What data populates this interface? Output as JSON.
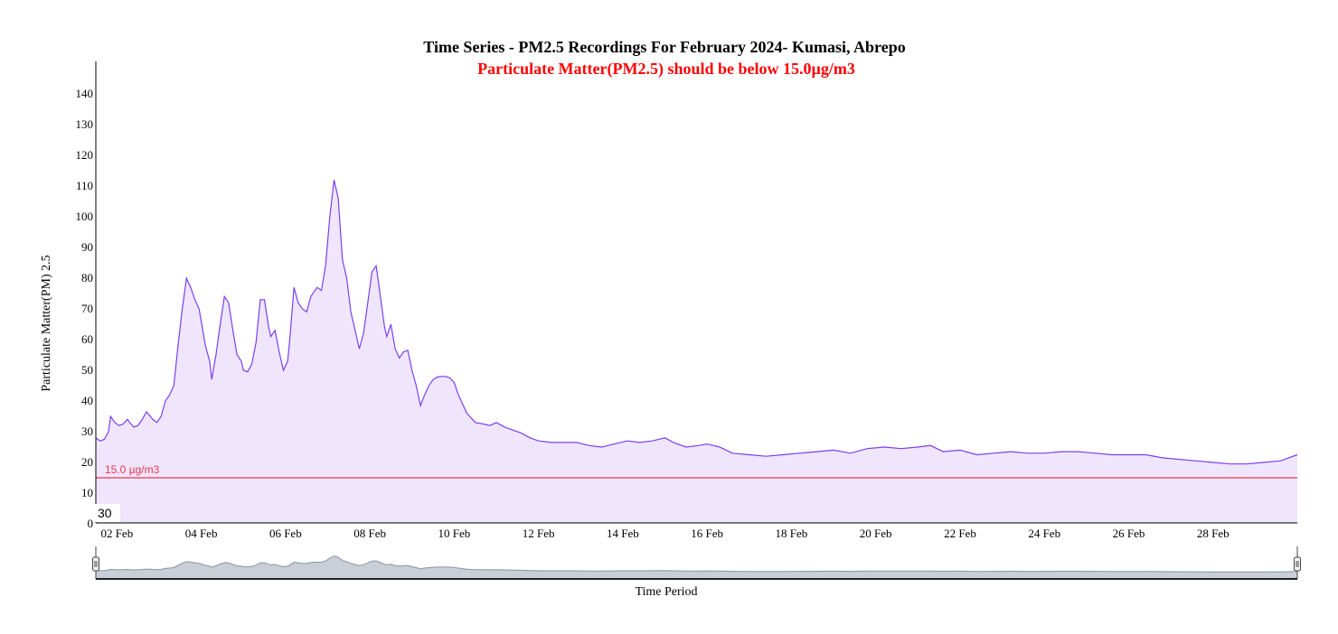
{
  "chart_data": {
    "type": "area",
    "title": "Time Series - PM2.5 Recordings For February 2024- Kumasi, Abrepo",
    "subtitle": "Particulate Matter(PM2.5) should be below 15.0µg/m3",
    "xlabel": "Time Period",
    "ylabel": "Particulate Matter(PM) 2.5",
    "ylim": [
      0,
      150
    ],
    "yticks": [
      0,
      10,
      20,
      30,
      40,
      50,
      60,
      70,
      80,
      90,
      100,
      110,
      120,
      130,
      140
    ],
    "xlim": [
      1.5,
      30.0
    ],
    "xticks": [
      {
        "day": 2,
        "label": "02 Feb"
      },
      {
        "day": 4,
        "label": "04 Feb"
      },
      {
        "day": 6,
        "label": "06 Feb"
      },
      {
        "day": 8,
        "label": "08 Feb"
      },
      {
        "day": 10,
        "label": "10 Feb"
      },
      {
        "day": 12,
        "label": "12 Feb"
      },
      {
        "day": 14,
        "label": "14 Feb"
      },
      {
        "day": 16,
        "label": "16 Feb"
      },
      {
        "day": 18,
        "label": "18 Feb"
      },
      {
        "day": 20,
        "label": "20 Feb"
      },
      {
        "day": 22,
        "label": "22 Feb"
      },
      {
        "day": 24,
        "label": "24 Feb"
      },
      {
        "day": 26,
        "label": "26 Feb"
      },
      {
        "day": 28,
        "label": "28 Feb"
      }
    ],
    "threshold": {
      "value": 15.0,
      "label": "15.0 µg/m3",
      "color": "#e8384f"
    },
    "badge_text": "30",
    "grid": false,
    "colors": {
      "line": "#7b3ff2",
      "fill": "#efe6fd",
      "navigator": "#8a95a5"
    },
    "series": [
      {
        "x": [
          1.5,
          1.6,
          1.7,
          1.8,
          1.85,
          1.95,
          2.05,
          2.15,
          2.25,
          2.3,
          2.4,
          2.5,
          2.6,
          2.7,
          2.85,
          2.95,
          3.05,
          3.15,
          3.25,
          3.35,
          3.45,
          3.55,
          3.65,
          3.75,
          3.85,
          3.95,
          4.0,
          4.1,
          4.2,
          4.25,
          4.35,
          4.45,
          4.55,
          4.65,
          4.75,
          4.85,
          4.95,
          5.0,
          5.1,
          5.2,
          5.3,
          5.4,
          5.5,
          5.6,
          5.65,
          5.75,
          5.85,
          5.95,
          6.05,
          6.1,
          6.2,
          6.3,
          6.4,
          6.5,
          6.6,
          6.75,
          6.85,
          6.95,
          7.05,
          7.15,
          7.25,
          7.35,
          7.45,
          7.55,
          7.65,
          7.75,
          7.85,
          7.95,
          8.05,
          8.15,
          8.25,
          8.35,
          8.4,
          8.5,
          8.6,
          8.7,
          8.8,
          8.9,
          9.0,
          9.1,
          9.2,
          9.3,
          9.4,
          9.5,
          9.6,
          9.7,
          9.8,
          9.9,
          10.0,
          10.1,
          10.2,
          10.3,
          10.5,
          10.7,
          10.85,
          11.0,
          11.2,
          11.4,
          11.6,
          11.8,
          12.0,
          12.3,
          12.6,
          12.9,
          13.2,
          13.5,
          13.8,
          14.1,
          14.4,
          14.7,
          15.0,
          15.2,
          15.5,
          15.8,
          16.0,
          16.3,
          16.6,
          17.0,
          17.4,
          17.8,
          18.2,
          18.6,
          19.0,
          19.4,
          19.8,
          20.2,
          20.6,
          21.0,
          21.3,
          21.6,
          22.0,
          22.4,
          22.8,
          23.2,
          23.6,
          24.0,
          24.4,
          24.8,
          25.2,
          25.6,
          26.0,
          26.4,
          26.8,
          27.2,
          27.6,
          28.0,
          28.4,
          28.8,
          29.2,
          29.6,
          30.0
        ],
        "y": [
          28,
          27,
          27.5,
          30,
          35,
          33,
          32,
          32.5,
          34,
          33,
          31.5,
          32,
          34,
          36.5,
          34,
          33,
          35,
          40,
          42,
          45,
          58,
          70,
          80,
          77,
          73,
          70,
          66,
          58,
          53,
          47,
          55,
          65,
          74,
          72,
          63,
          55,
          53,
          50,
          49.5,
          52,
          59,
          73,
          73,
          64,
          61,
          63,
          56,
          50,
          53,
          60,
          77,
          72,
          70,
          69,
          74,
          77,
          76,
          84,
          100,
          112,
          106,
          86,
          80,
          69,
          63,
          57,
          62,
          72,
          82,
          84,
          74,
          64,
          61,
          65,
          57,
          54,
          56,
          56.5,
          50,
          45,
          38.5,
          42,
          45,
          47,
          47.8,
          48,
          48,
          47.5,
          46,
          42,
          39,
          36,
          33,
          32.5,
          32,
          33,
          31.5,
          30.5,
          29.5,
          28,
          27,
          26.5,
          26.5,
          26.5,
          25.5,
          25,
          26,
          27,
          26.5,
          27,
          28,
          26.5,
          25,
          25.5,
          26,
          25,
          23,
          22.5,
          22,
          22.5,
          23,
          23.5,
          24,
          23,
          24.5,
          25,
          24.5,
          25,
          25.5,
          23.5,
          24,
          22.5,
          23,
          23.5,
          23,
          23,
          23.5,
          23.5,
          23,
          22.5,
          22.5,
          22.5,
          21.5,
          21,
          20.5,
          20,
          19.5,
          19.5,
          20,
          20.5,
          22.5
        ]
      }
    ]
  }
}
